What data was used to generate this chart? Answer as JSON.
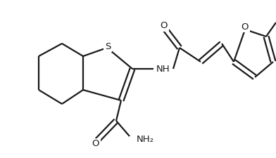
{
  "bg_color": "#ffffff",
  "line_color": "#1a1a1a",
  "line_width": 1.6,
  "figsize": [
    3.92,
    2.25
  ],
  "dpi": 100,
  "label_S": "S",
  "label_NH": "NH",
  "label_O1": "O",
  "label_O2": "O",
  "label_NH2": "NH₂",
  "label_O_furan": "O",
  "fontsize": 9.5
}
